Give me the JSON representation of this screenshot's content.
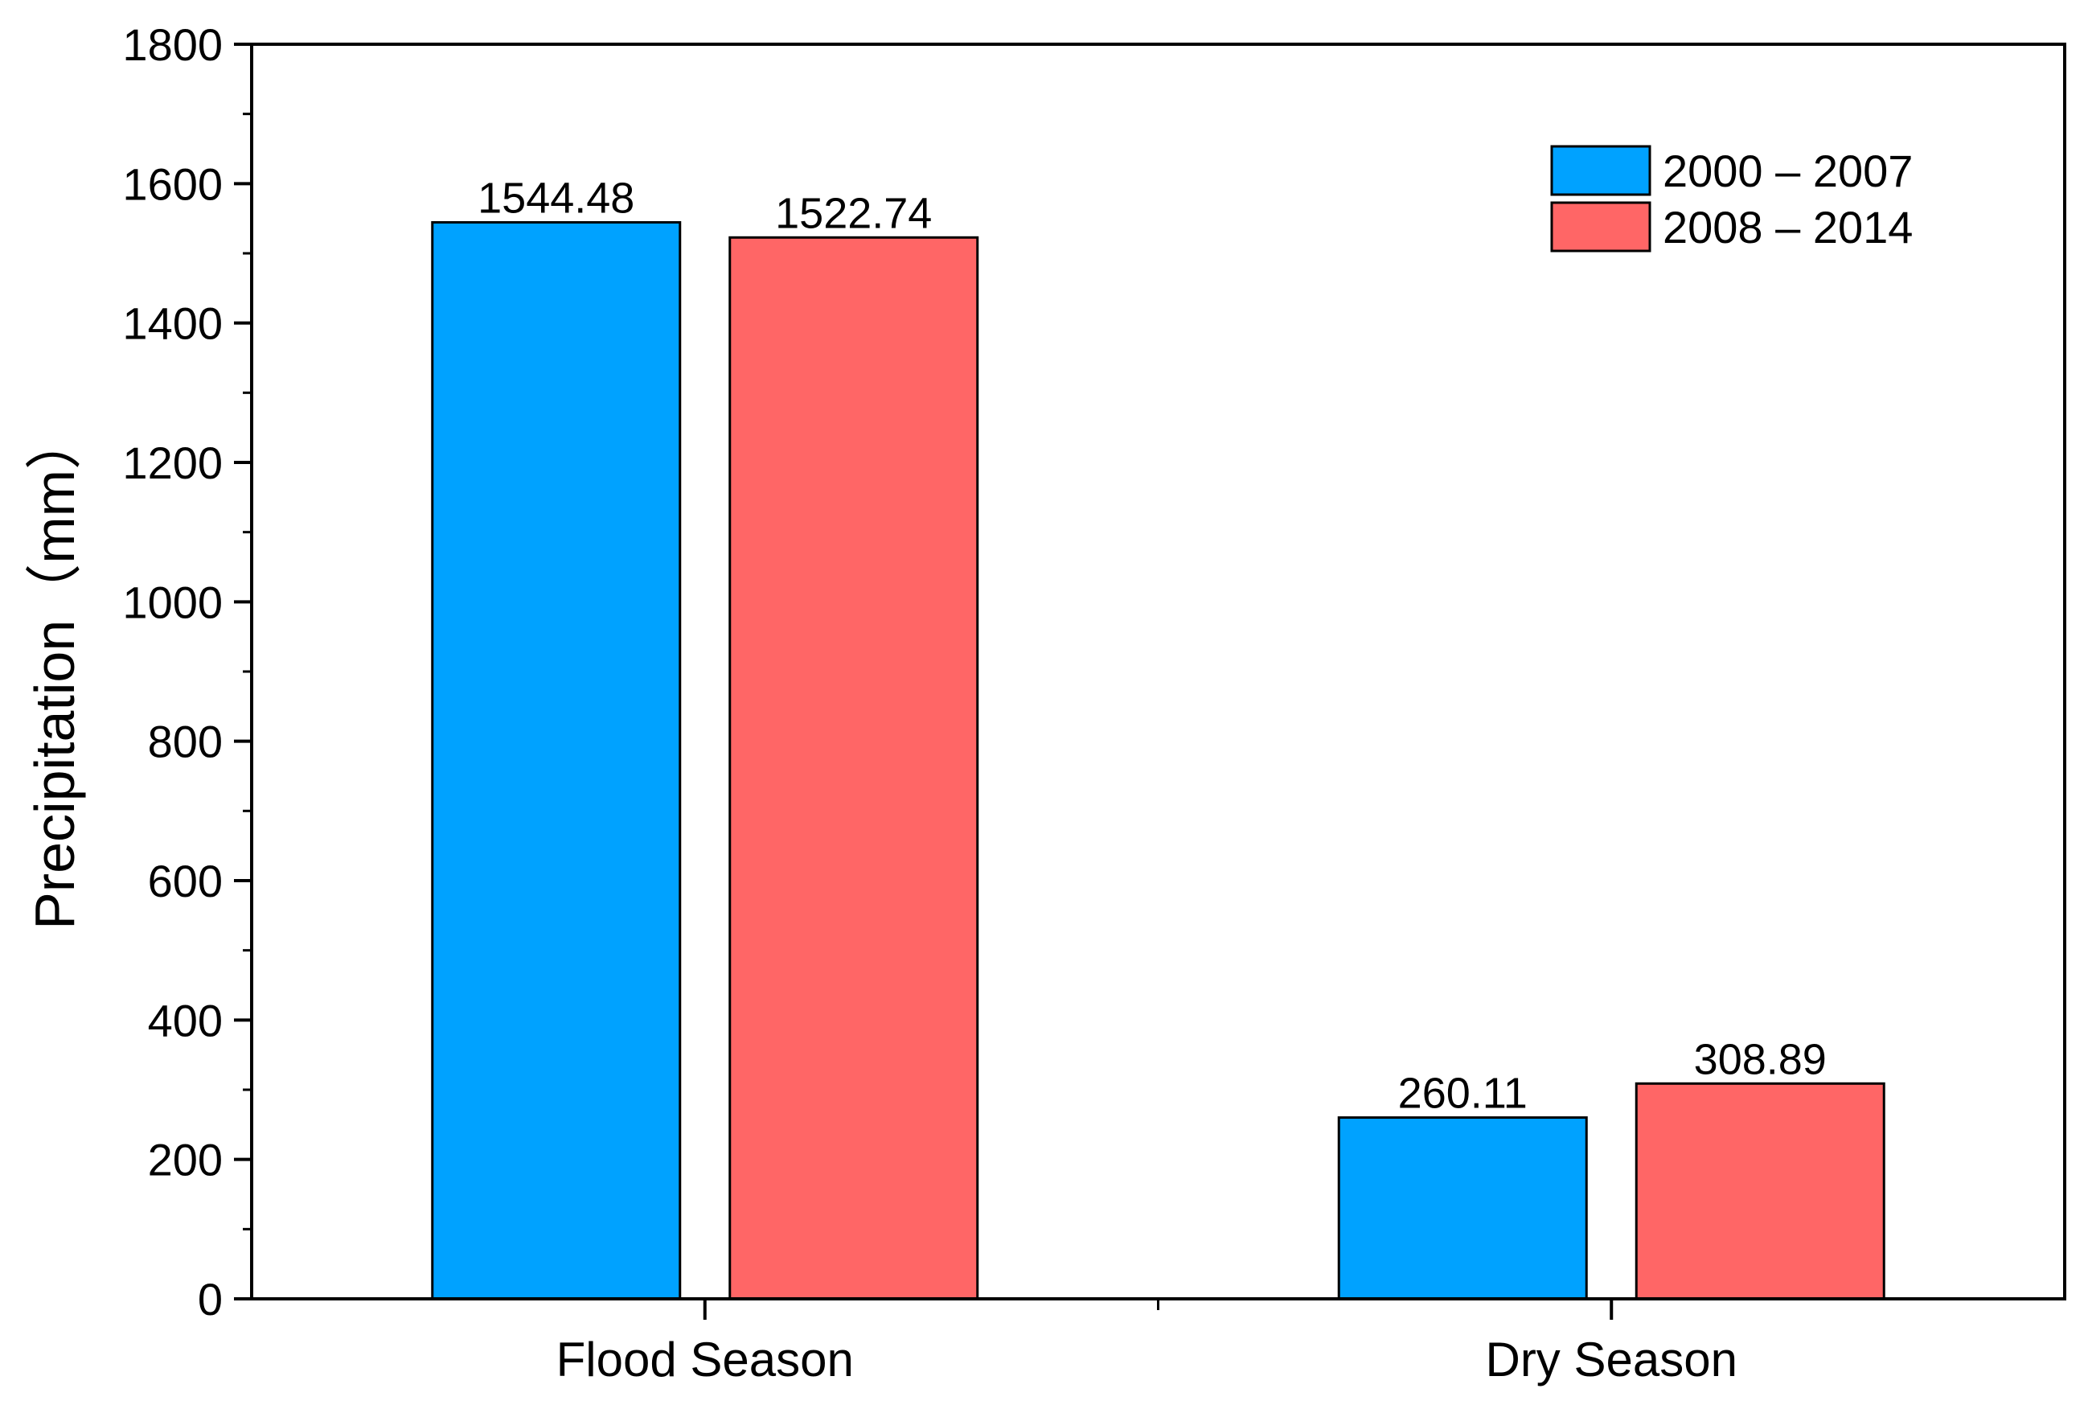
{
  "chart_data": {
    "type": "bar",
    "title": "",
    "xlabel": "",
    "ylabel": "Precipitation（mm）",
    "ylim": [
      0,
      1800
    ],
    "yticks": [
      0,
      200,
      400,
      600,
      800,
      1000,
      1200,
      1400,
      1600,
      1800
    ],
    "grid": false,
    "legend_position": "top-right",
    "categories": [
      "Flood Season",
      "Dry Season"
    ],
    "series": [
      {
        "name": "2000 – 2007",
        "color": "#00a2ff",
        "values": [
          1544.48,
          260.11
        ],
        "labels": [
          "1544.48",
          "260.11"
        ]
      },
      {
        "name": "2008 – 2014",
        "color": "#ff6666",
        "values": [
          1522.74,
          308.89
        ],
        "labels": [
          "1522.74",
          "308.89"
        ]
      }
    ]
  }
}
